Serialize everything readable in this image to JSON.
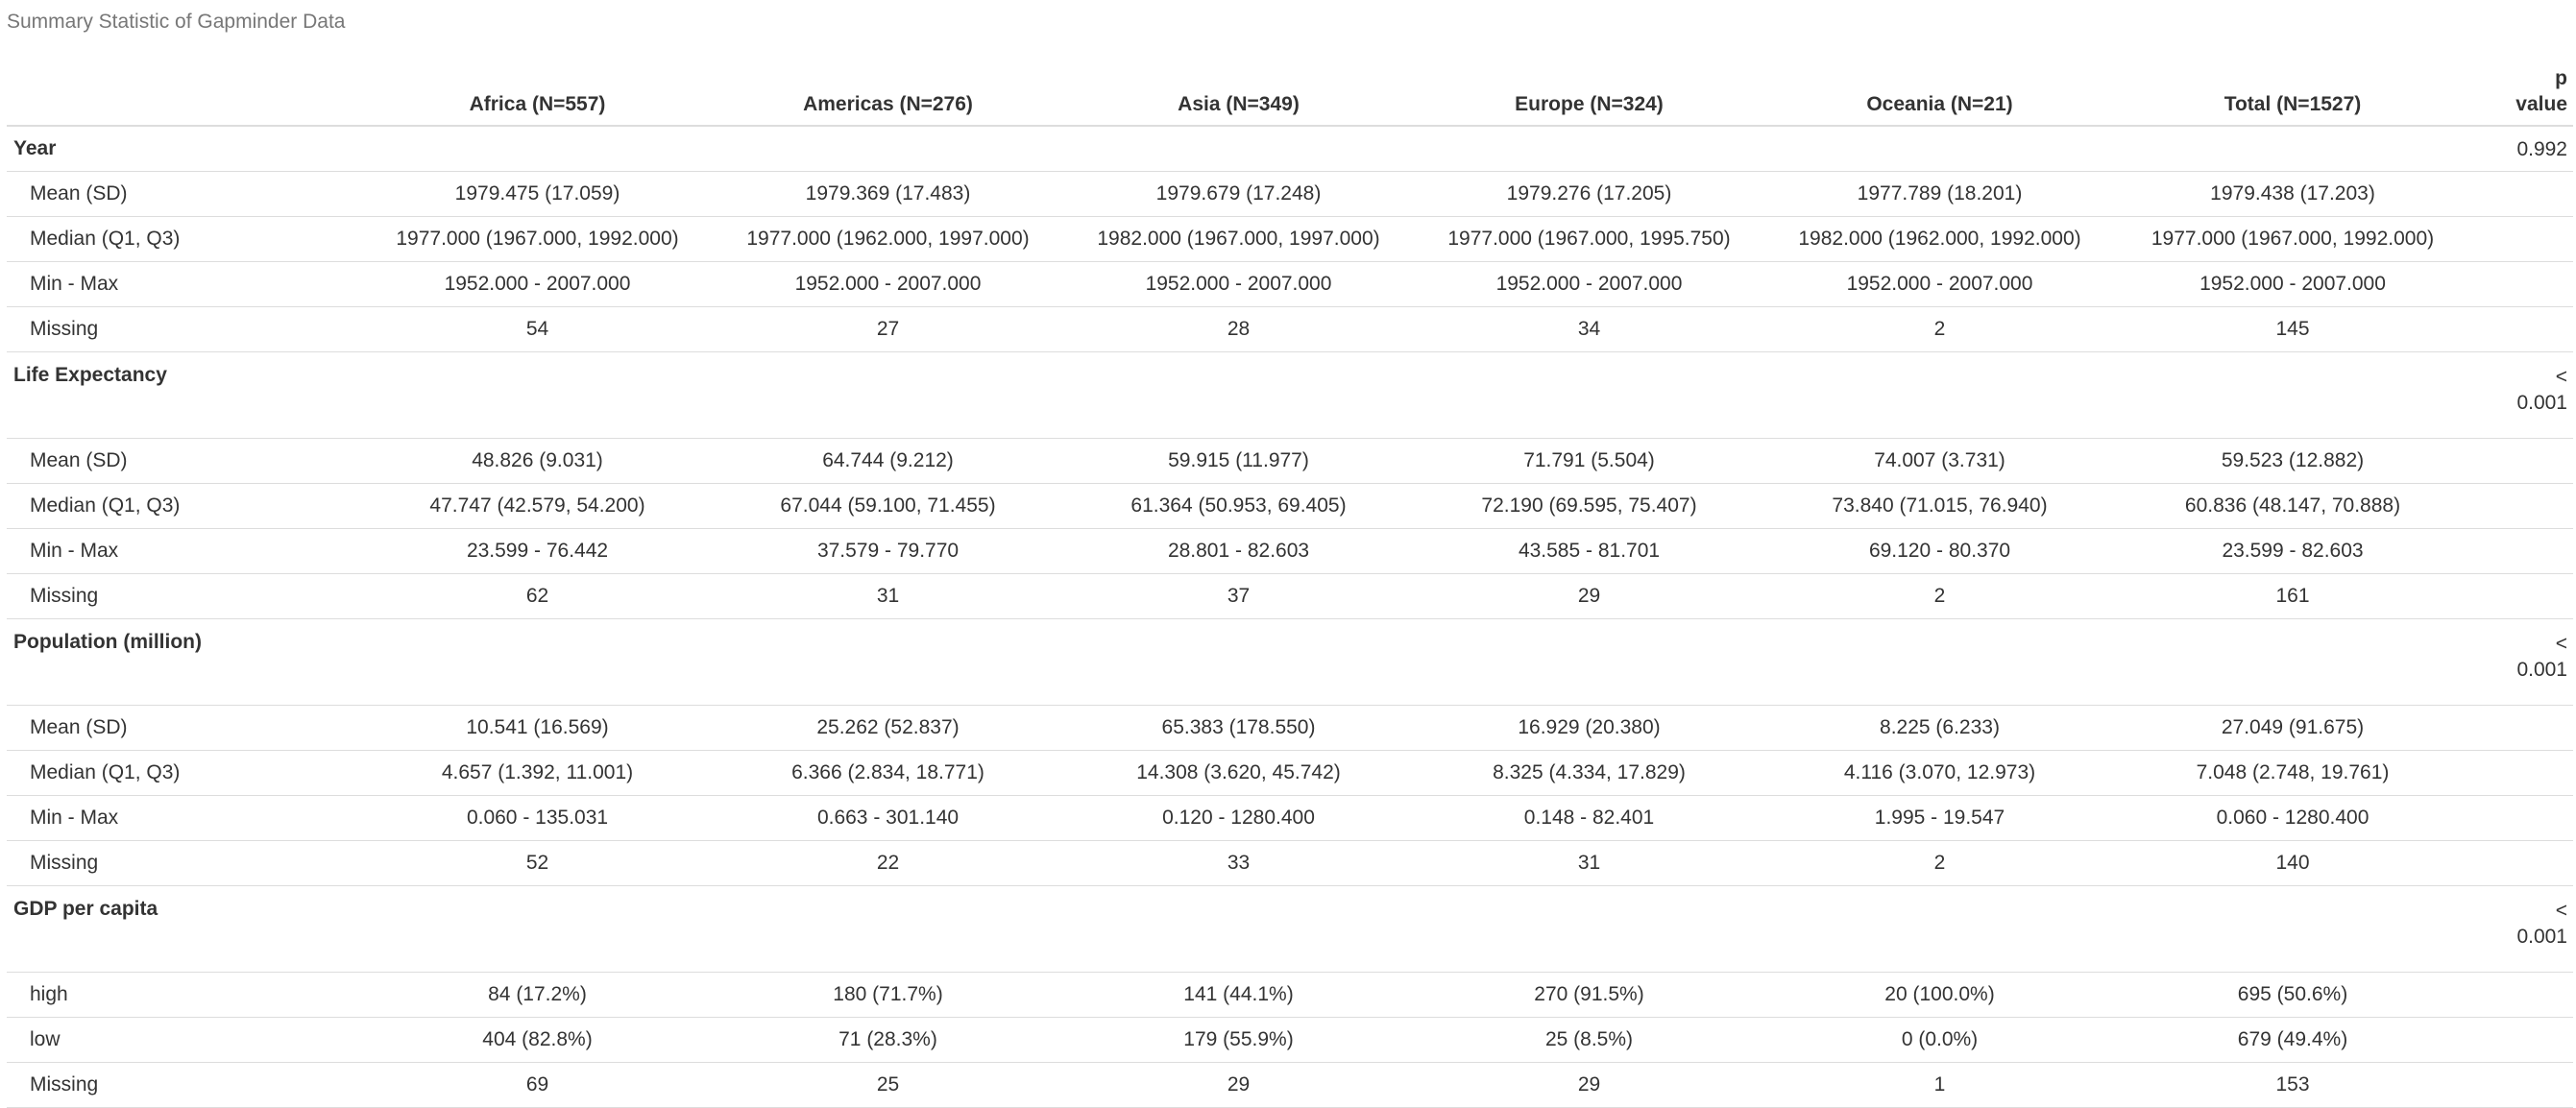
{
  "caption": "Summary Statistic of Gapminder Data",
  "header": {
    "label": "",
    "groups": [
      "Africa (N=557)",
      "Americas (N=276)",
      "Asia (N=349)",
      "Europe (N=324)",
      "Oceania (N=21)"
    ],
    "total": "Total (N=1527)",
    "p_value_line1": "p",
    "p_value_line2": "value"
  },
  "sections": [
    {
      "name": "Year",
      "p_value_line1": "0.992",
      "p_value_line2": "",
      "rows": [
        {
          "label": "Mean (SD)",
          "values": [
            "1979.475 (17.059)",
            "1979.369 (17.483)",
            "1979.679 (17.248)",
            "1979.276 (17.205)",
            "1977.789 (18.201)"
          ],
          "total": "1979.438 (17.203)"
        },
        {
          "label": "Median (Q1, Q3)",
          "values": [
            "1977.000 (1967.000, 1992.000)",
            "1977.000 (1962.000, 1997.000)",
            "1982.000 (1967.000, 1997.000)",
            "1977.000 (1967.000, 1995.750)",
            "1982.000 (1962.000, 1992.000)"
          ],
          "total": "1977.000 (1967.000, 1992.000)"
        },
        {
          "label": "Min - Max",
          "values": [
            "1952.000 - 2007.000",
            "1952.000 - 2007.000",
            "1952.000 - 2007.000",
            "1952.000 - 2007.000",
            "1952.000 - 2007.000"
          ],
          "total": "1952.000 - 2007.000"
        },
        {
          "label": "Missing",
          "values": [
            "54",
            "27",
            "28",
            "34",
            "2"
          ],
          "total": "145"
        }
      ]
    },
    {
      "name": "Life Expectancy",
      "p_value_line1": "<",
      "p_value_line2": "0.001",
      "rows": [
        {
          "label": "Mean (SD)",
          "values": [
            "48.826 (9.031)",
            "64.744 (9.212)",
            "59.915 (11.977)",
            "71.791 (5.504)",
            "74.007 (3.731)"
          ],
          "total": "59.523 (12.882)"
        },
        {
          "label": "Median (Q1, Q3)",
          "values": [
            "47.747 (42.579, 54.200)",
            "67.044 (59.100, 71.455)",
            "61.364 (50.953, 69.405)",
            "72.190 (69.595, 75.407)",
            "73.840 (71.015, 76.940)"
          ],
          "total": "60.836 (48.147, 70.888)"
        },
        {
          "label": "Min - Max",
          "values": [
            "23.599 - 76.442",
            "37.579 - 79.770",
            "28.801 - 82.603",
            "43.585 - 81.701",
            "69.120 - 80.370"
          ],
          "total": "23.599 - 82.603"
        },
        {
          "label": "Missing",
          "values": [
            "62",
            "31",
            "37",
            "29",
            "2"
          ],
          "total": "161"
        }
      ]
    },
    {
      "name": "Population (million)",
      "p_value_line1": "<",
      "p_value_line2": "0.001",
      "rows": [
        {
          "label": "Mean (SD)",
          "values": [
            "10.541 (16.569)",
            "25.262 (52.837)",
            "65.383 (178.550)",
            "16.929 (20.380)",
            "8.225 (6.233)"
          ],
          "total": "27.049 (91.675)"
        },
        {
          "label": "Median (Q1, Q3)",
          "values": [
            "4.657 (1.392, 11.001)",
            "6.366 (2.834, 18.771)",
            "14.308 (3.620, 45.742)",
            "8.325 (4.334, 17.829)",
            "4.116 (3.070, 12.973)"
          ],
          "total": "7.048 (2.748, 19.761)"
        },
        {
          "label": "Min - Max",
          "values": [
            "0.060 - 135.031",
            "0.663 - 301.140",
            "0.120 - 1280.400",
            "0.148 - 82.401",
            "1.995 - 19.547"
          ],
          "total": "0.060 - 1280.400"
        },
        {
          "label": "Missing",
          "values": [
            "52",
            "22",
            "33",
            "31",
            "2"
          ],
          "total": "140"
        }
      ]
    },
    {
      "name": "GDP per capita",
      "p_value_line1": "<",
      "p_value_line2": "0.001",
      "rows": [
        {
          "label": "high",
          "values": [
            "84 (17.2%)",
            "180 (71.7%)",
            "141 (44.1%)",
            "270 (91.5%)",
            "20 (100.0%)"
          ],
          "total": "695 (50.6%)"
        },
        {
          "label": "low",
          "values": [
            "404 (82.8%)",
            "71 (28.3%)",
            "179 (55.9%)",
            "25 (8.5%)",
            "0 (0.0%)"
          ],
          "total": "679 (49.4%)"
        },
        {
          "label": "Missing",
          "values": [
            "69",
            "25",
            "29",
            "29",
            "1"
          ],
          "total": "153"
        }
      ]
    }
  ]
}
